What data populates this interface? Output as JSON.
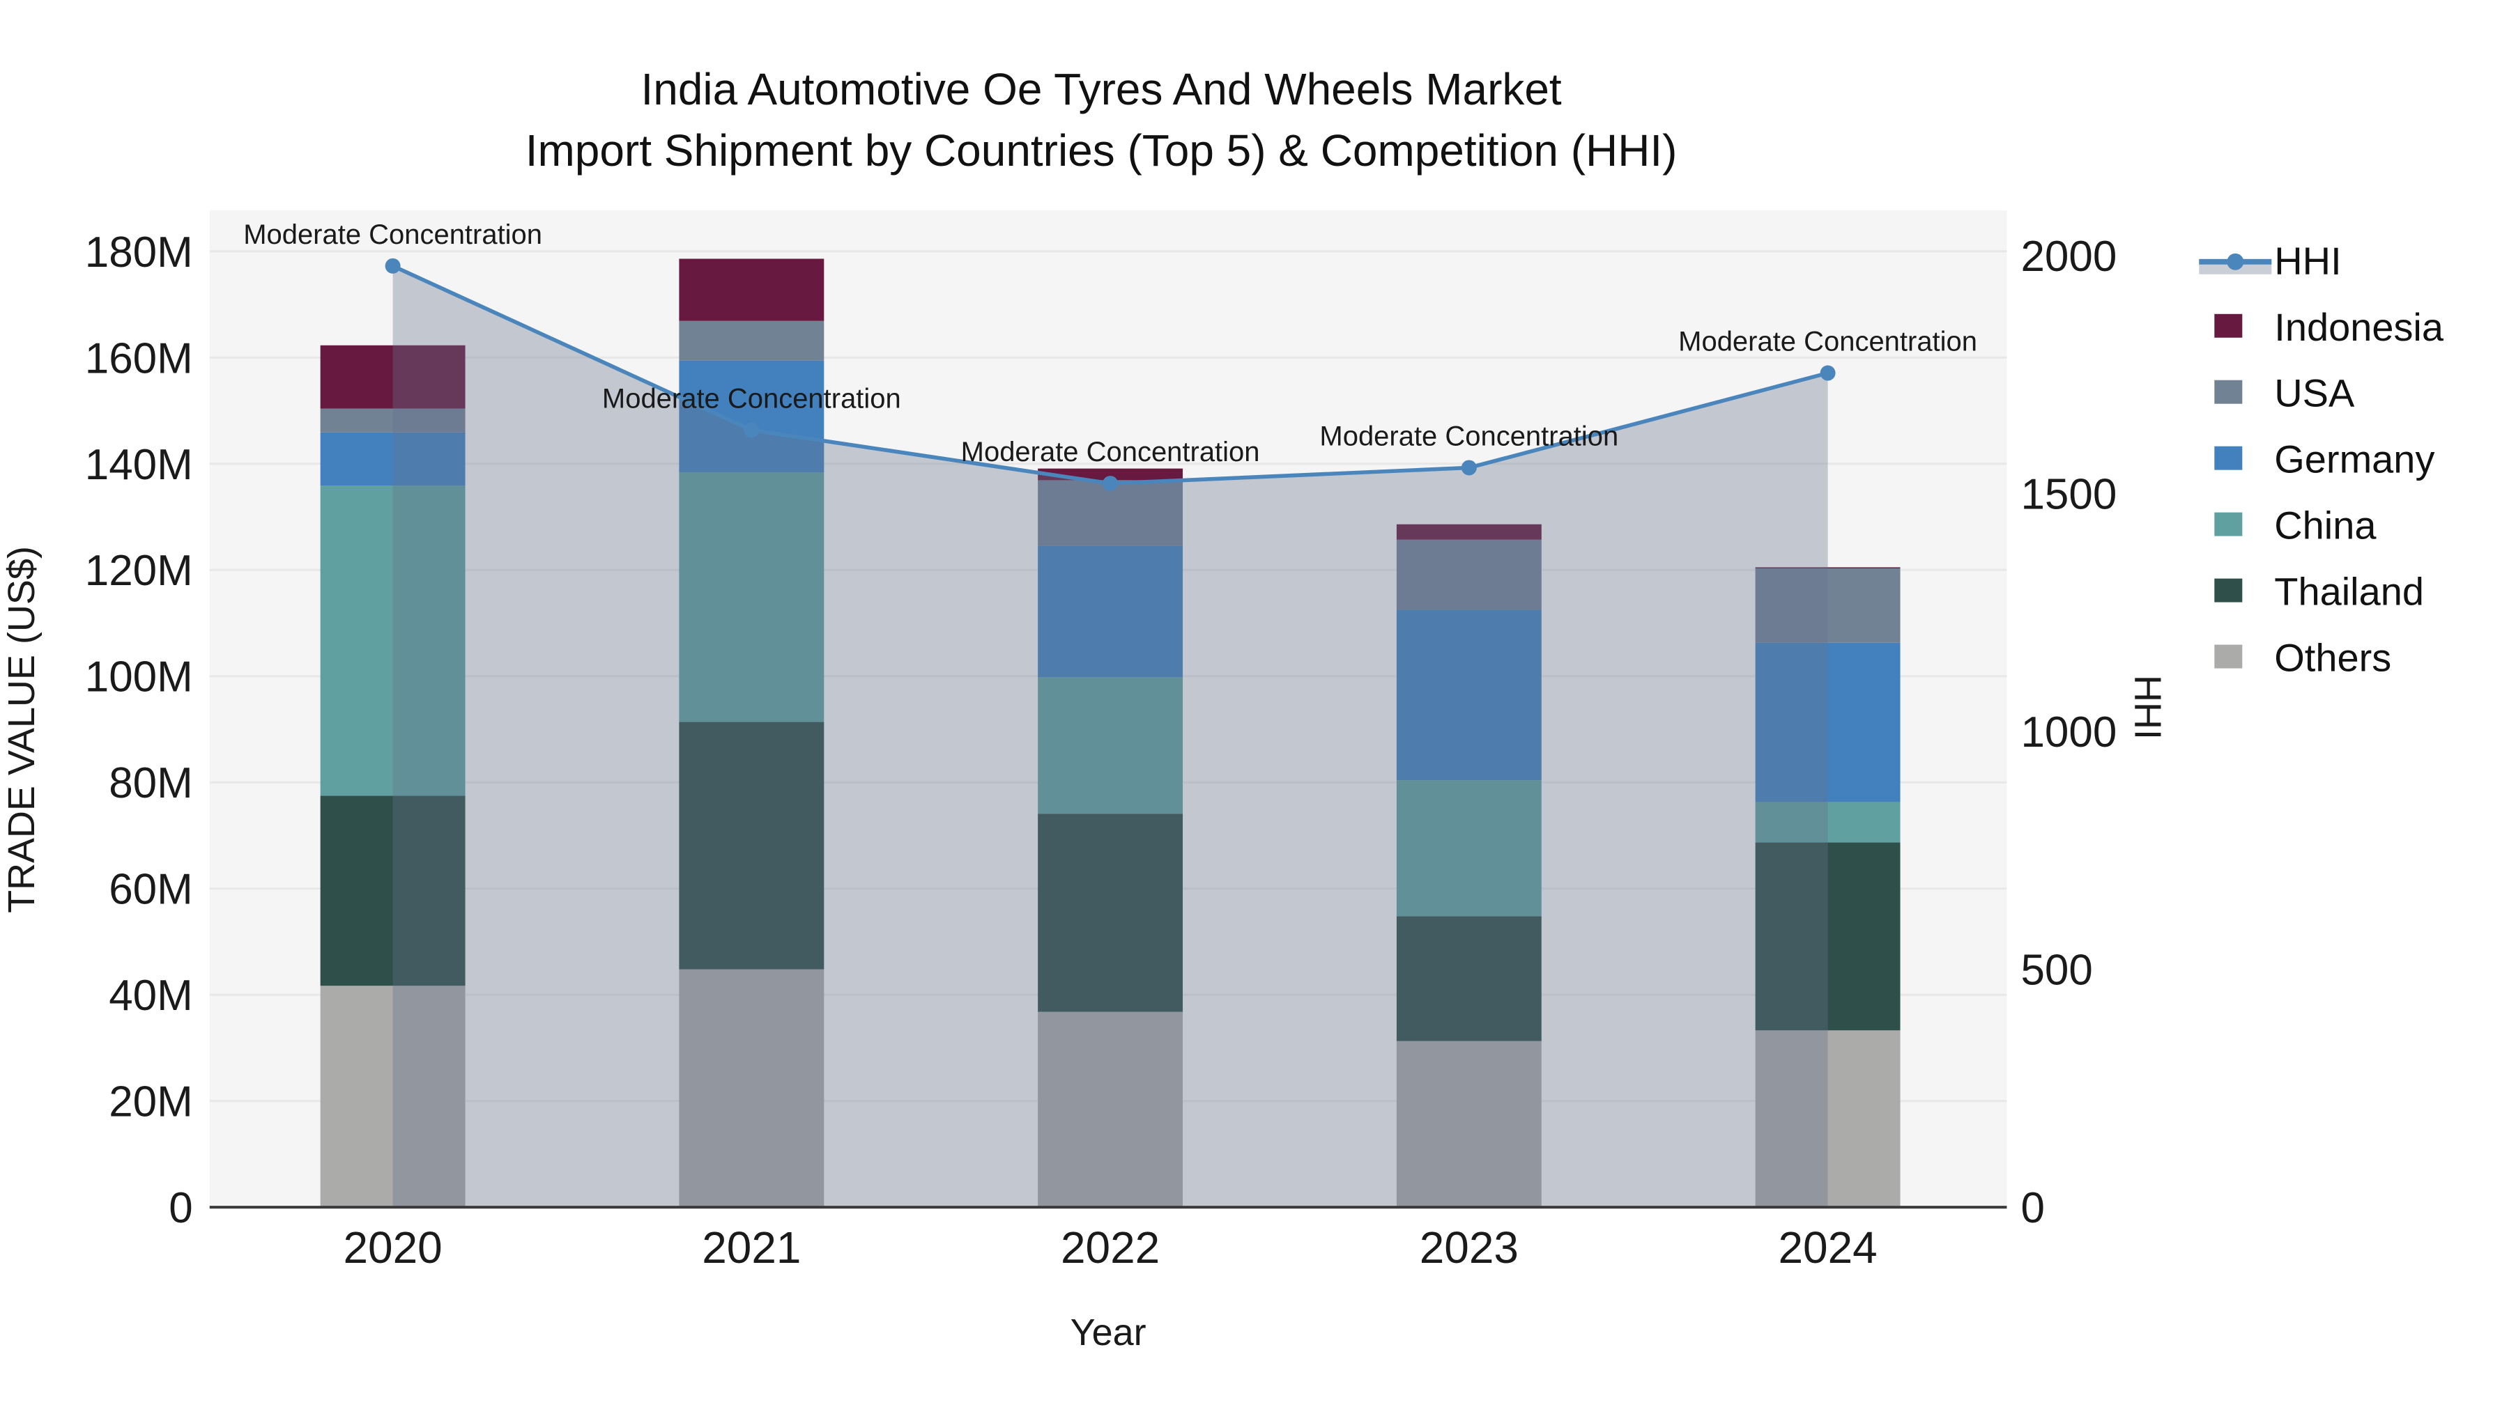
{
  "title": {
    "line1": "India Automotive Oe Tyres And Wheels Market",
    "line2": "Import Shipment by Countries (Top 5) & Competition (HHI)"
  },
  "chart_data": {
    "type": "bar+line",
    "title": "India Automotive Oe Tyres And Wheels Market — Import Shipment by Countries (Top 5) & Competition (HHI)",
    "xlabel": "Year",
    "ylabel_left": "TRADE VALUE (US$)",
    "ylabel_right": "HHI",
    "categories": [
      "2020",
      "2021",
      "2022",
      "2023",
      "2024"
    ],
    "stack_order_bottom_to_top": [
      "Others",
      "Thailand",
      "China",
      "Germany",
      "USA",
      "Indonesia"
    ],
    "bar_series": [
      {
        "name": "Others",
        "color": "#ABABAA",
        "values_musd": [
          41.7,
          44.8,
          36.8,
          31.3,
          33.3
        ]
      },
      {
        "name": "Thailand",
        "color": "#2F4F4B",
        "values_musd": [
          35.8,
          46.6,
          37.3,
          23.5,
          35.4
        ]
      },
      {
        "name": "China",
        "color": "#61A0A0",
        "values_musd": [
          58.4,
          47.0,
          25.7,
          25.6,
          7.6
        ]
      },
      {
        "name": "Germany",
        "color": "#4281BD",
        "values_musd": [
          10.0,
          21.0,
          24.7,
          32.1,
          30.0
        ]
      },
      {
        "name": "USA",
        "color": "#728295",
        "values_musd": [
          4.5,
          7.5,
          12.4,
          13.2,
          14.0
        ]
      },
      {
        "name": "Indonesia",
        "color": "#67193F",
        "values_musd": [
          11.9,
          11.7,
          2.2,
          2.9,
          0.2
        ]
      }
    ],
    "bar_totals_musd": [
      162.3,
      178.6,
      139.1,
      128.6,
      120.5
    ],
    "line_series": {
      "name": "HHI",
      "color": "#4A86BB",
      "area_fill": "rgba(100,115,140,0.35)",
      "values": [
        1978,
        1633,
        1521,
        1554,
        1753
      ]
    },
    "annotations": [
      {
        "category": "2020",
        "text": "Moderate Concentration"
      },
      {
        "category": "2021",
        "text": "Moderate Concentration"
      },
      {
        "category": "2022",
        "text": "Moderate Concentration"
      },
      {
        "category": "2023",
        "text": "Moderate Concentration"
      },
      {
        "category": "2024",
        "text": "Moderate Concentration"
      }
    ],
    "y_axis_left": {
      "tick_labels": [
        "0",
        "20M",
        "40M",
        "60M",
        "80M",
        "100M",
        "120M",
        "140M",
        "160M",
        "180M"
      ],
      "tick_values_musd": [
        0,
        20,
        40,
        60,
        80,
        100,
        120,
        140,
        160,
        180
      ],
      "range_musd": [
        0,
        188
      ]
    },
    "y_axis_right": {
      "tick_labels": [
        "0",
        "500",
        "1000",
        "1500",
        "2000"
      ],
      "tick_values": [
        0,
        500,
        1000,
        1500,
        2000
      ],
      "range": [
        0,
        2100
      ]
    },
    "legend": [
      {
        "label": "HHI",
        "type": "line",
        "color": "#4A86BB"
      },
      {
        "label": "Indonesia",
        "type": "swatch",
        "color": "#67193F"
      },
      {
        "label": "USA",
        "type": "swatch",
        "color": "#728295"
      },
      {
        "label": "Germany",
        "type": "swatch",
        "color": "#4281BD"
      },
      {
        "label": "China",
        "type": "swatch",
        "color": "#61A0A0"
      },
      {
        "label": "Thailand",
        "type": "swatch",
        "color": "#2F4F4B"
      },
      {
        "label": "Others",
        "type": "swatch",
        "color": "#ABABAA"
      }
    ],
    "style": {
      "plot_bg": "#F5F5F5",
      "grid_color": "#E8E8E8",
      "axis_line_color": "#3B3B3B"
    }
  }
}
